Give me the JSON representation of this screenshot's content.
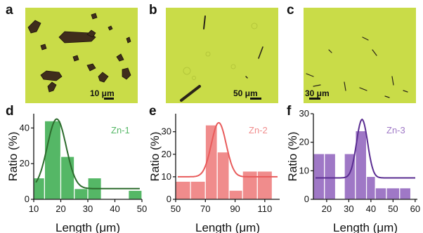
{
  "panels": {
    "a": "a",
    "b": "b",
    "c": "c",
    "d": "d",
    "e": "e",
    "f": "f"
  },
  "micrographs": [
    {
      "id": "a",
      "scale_label": "10 μm",
      "background": "#c8dc46"
    },
    {
      "id": "b",
      "scale_label": "50 μm",
      "background": "#c8dc46"
    },
    {
      "id": "c",
      "scale_label": "30 μm",
      "background": "#c8dc46"
    }
  ],
  "chart_data": [
    {
      "type": "bar",
      "panel": "d",
      "series_label": "Zn-1",
      "color": "#55b766",
      "fit_color": "#2d6b2d",
      "xlabel": "Length (μm)",
      "ylabel": "Ratio (%)",
      "xlim": [
        10,
        50
      ],
      "ylim": [
        0,
        48
      ],
      "xticks": [
        10,
        20,
        30,
        40,
        50
      ],
      "yticks": [
        0,
        20,
        40
      ],
      "bins": [
        [
          10,
          14,
          12
        ],
        [
          14,
          20,
          44
        ],
        [
          20,
          25,
          24
        ],
        [
          25,
          30,
          6
        ],
        [
          30,
          35,
          12
        ],
        [
          45,
          50,
          5
        ]
      ],
      "fit": {
        "center": 18.5,
        "sigma": 3.5,
        "amplitude": 39,
        "baseline": 6
      }
    },
    {
      "type": "bar",
      "panel": "e",
      "series_label": "Zn-2",
      "color": "#f08c8c",
      "fit_color": "#e85b5b",
      "xlabel": "Length (μm)",
      "ylabel": "Ratio (%)",
      "xlim": [
        50,
        120
      ],
      "ylim": [
        0,
        38
      ],
      "xticks": [
        50,
        70,
        90,
        110
      ],
      "yticks": [
        0,
        10,
        20,
        30
      ],
      "bins": [
        [
          50,
          60,
          8
        ],
        [
          60,
          70,
          8
        ],
        [
          70,
          78,
          33
        ],
        [
          78,
          86,
          21
        ],
        [
          86,
          95,
          4
        ],
        [
          95,
          105,
          12.5
        ],
        [
          105,
          115,
          12.5
        ]
      ],
      "fit": {
        "center": 79,
        "sigma": 5,
        "amplitude": 24,
        "baseline": 10
      }
    },
    {
      "type": "bar",
      "panel": "f",
      "series_label": "Zn-3",
      "color": "#9f78c6",
      "fit_color": "#5a2d91",
      "xlabel": "Length (μm)",
      "ylabel": "Ratio (%)",
      "xlim": [
        14,
        61
      ],
      "ylim": [
        0,
        30
      ],
      "xticks": [
        20,
        30,
        40,
        50,
        60
      ],
      "yticks": [
        0,
        10,
        20,
        30
      ],
      "bins": [
        [
          14,
          19,
          16
        ],
        [
          19,
          24,
          16
        ],
        [
          28,
          33,
          16
        ],
        [
          33,
          38,
          24
        ],
        [
          38,
          42,
          8
        ],
        [
          42,
          47,
          4
        ],
        [
          47,
          53,
          4
        ],
        [
          53,
          58,
          4
        ]
      ],
      "fit": {
        "center": 36,
        "sigma": 2.5,
        "amplitude": 20.5,
        "baseline": 7.5
      }
    }
  ]
}
